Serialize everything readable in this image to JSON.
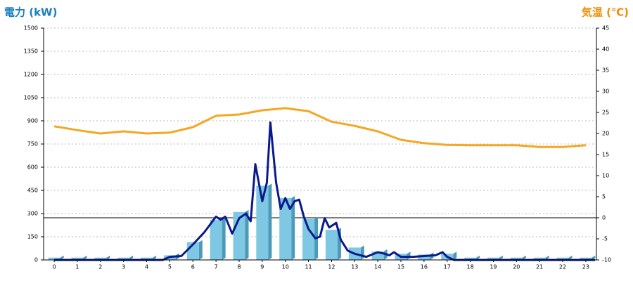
{
  "chart_data": {
    "type": "bar",
    "ylabel": "電力 (kW)",
    "y2label": "気温 (℃)",
    "xlim": [
      -0.46,
      23.46
    ],
    "xticks": [
      0,
      1,
      2,
      3,
      4,
      5,
      6,
      7,
      8,
      9,
      10,
      11,
      12,
      13,
      14,
      15,
      16,
      17,
      18,
      19,
      20,
      21,
      22,
      23
    ],
    "ylim": [
      0,
      1500
    ],
    "yticks": [
      0,
      150,
      300,
      450,
      600,
      750,
      900,
      1050,
      1200,
      1350,
      1500
    ],
    "y2lim": [
      -10,
      45
    ],
    "y2ticks": [
      -10,
      -5,
      0,
      5,
      10,
      15,
      20,
      25,
      30,
      35,
      40,
      45
    ],
    "grid": true,
    "reference_line": {
      "axis": "y2",
      "value": 0,
      "color": "#000000"
    },
    "series": [
      {
        "type": "bar",
        "color": "#7ec8e3",
        "side_color": "#4a9ab8",
        "x": [
          0,
          1,
          2,
          3,
          4,
          5,
          6,
          7,
          8,
          9,
          10,
          11,
          12,
          13,
          14,
          15,
          16,
          17,
          18,
          19,
          20,
          21,
          22,
          23
        ],
        "values": [
          15,
          15,
          15,
          15,
          15,
          30,
          115,
          260,
          310,
          480,
          400,
          265,
          195,
          80,
          55,
          40,
          35,
          40,
          15,
          15,
          15,
          15,
          15,
          15
        ]
      },
      {
        "type": "line",
        "color": "#f5a623",
        "axis": "y2",
        "x": [
          0,
          1,
          2,
          3,
          4,
          5,
          6,
          7,
          8,
          9,
          10,
          11,
          12,
          13,
          14,
          15,
          16,
          17,
          18,
          19,
          20,
          21,
          22,
          23
        ],
        "values": [
          21.7,
          20.8,
          20,
          20.5,
          20,
          20.2,
          21.5,
          24.2,
          24.5,
          25.5,
          26,
          25.3,
          22.8,
          21.8,
          20.5,
          18.5,
          17.7,
          17.3,
          17.2,
          17.2,
          17.2,
          16.8,
          16.8,
          17.2
        ]
      },
      {
        "type": "line",
        "color": "#0a1a8c",
        "x": [
          0,
          4.7,
          5,
          5.5,
          6,
          6.5,
          7,
          7.2,
          7.4,
          7.7,
          8,
          8.3,
          8.5,
          8.7,
          9,
          9.2,
          9.35,
          9.6,
          9.8,
          10,
          10.2,
          10.4,
          10.6,
          10.8,
          11,
          11.3,
          11.5,
          11.7,
          11.9,
          12.2,
          12.4,
          12.7,
          13,
          13.5,
          14,
          14.3,
          14.5,
          14.7,
          15,
          15.5,
          16,
          16.5,
          16.8,
          17,
          17.3,
          23.4
        ],
        "values": [
          0,
          0,
          20,
          25,
          100,
          180,
          280,
          260,
          280,
          170,
          270,
          300,
          250,
          620,
          380,
          500,
          890,
          500,
          330,
          400,
          330,
          380,
          390,
          280,
          200,
          140,
          150,
          270,
          210,
          240,
          130,
          60,
          40,
          20,
          50,
          40,
          30,
          50,
          20,
          20,
          25,
          30,
          50,
          20,
          0,
          0
        ]
      }
    ]
  }
}
